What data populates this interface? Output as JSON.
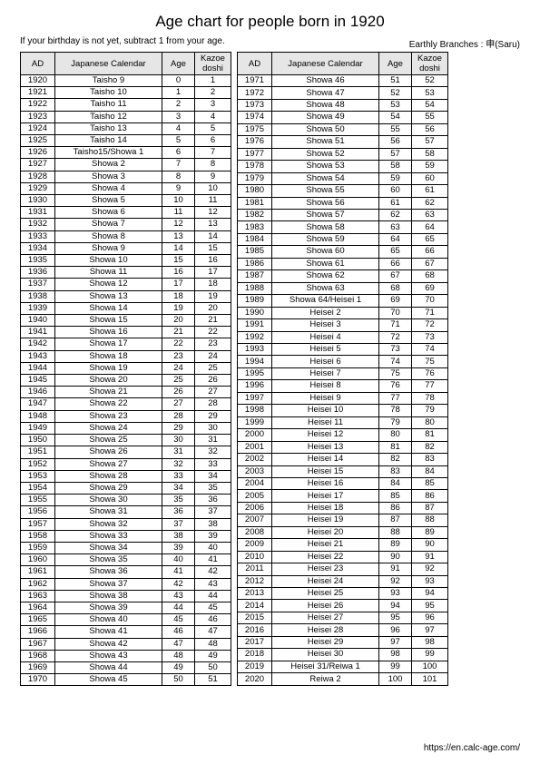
{
  "title": "Age chart for people born in 1920",
  "note_left": "If your birthday is not yet, subtract 1 from your age.",
  "note_right": "Earthly Branches :  申(Saru)",
  "footer": "https://en.calc-age.com/",
  "columns": [
    "AD",
    "Japanese Calendar",
    "Age",
    "Kazoe doshi"
  ],
  "left": [
    [
      "1920",
      "Taisho 9",
      "0",
      "1"
    ],
    [
      "1921",
      "Taisho 10",
      "1",
      "2"
    ],
    [
      "1922",
      "Taisho 11",
      "2",
      "3"
    ],
    [
      "1923",
      "Taisho 12",
      "3",
      "4"
    ],
    [
      "1924",
      "Taisho 13",
      "4",
      "5"
    ],
    [
      "1925",
      "Taisho 14",
      "5",
      "6"
    ],
    [
      "1926",
      "Taisho15/Showa 1",
      "6",
      "7"
    ],
    [
      "1927",
      "Showa 2",
      "7",
      "8"
    ],
    [
      "1928",
      "Showa 3",
      "8",
      "9"
    ],
    [
      "1929",
      "Showa 4",
      "9",
      "10"
    ],
    [
      "1930",
      "Showa 5",
      "10",
      "11"
    ],
    [
      "1931",
      "Showa 6",
      "11",
      "12"
    ],
    [
      "1932",
      "Showa 7",
      "12",
      "13"
    ],
    [
      "1933",
      "Showa 8",
      "13",
      "14"
    ],
    [
      "1934",
      "Showa 9",
      "14",
      "15"
    ],
    [
      "1935",
      "Showa 10",
      "15",
      "16"
    ],
    [
      "1936",
      "Showa 11",
      "16",
      "17"
    ],
    [
      "1937",
      "Showa 12",
      "17",
      "18"
    ],
    [
      "1938",
      "Showa 13",
      "18",
      "19"
    ],
    [
      "1939",
      "Showa 14",
      "19",
      "20"
    ],
    [
      "1940",
      "Showa 15",
      "20",
      "21"
    ],
    [
      "1941",
      "Showa 16",
      "21",
      "22"
    ],
    [
      "1942",
      "Showa 17",
      "22",
      "23"
    ],
    [
      "1943",
      "Showa 18",
      "23",
      "24"
    ],
    [
      "1944",
      "Showa 19",
      "24",
      "25"
    ],
    [
      "1945",
      "Showa 20",
      "25",
      "26"
    ],
    [
      "1946",
      "Showa 21",
      "26",
      "27"
    ],
    [
      "1947",
      "Showa 22",
      "27",
      "28"
    ],
    [
      "1948",
      "Showa 23",
      "28",
      "29"
    ],
    [
      "1949",
      "Showa 24",
      "29",
      "30"
    ],
    [
      "1950",
      "Showa 25",
      "30",
      "31"
    ],
    [
      "1951",
      "Showa 26",
      "31",
      "32"
    ],
    [
      "1952",
      "Showa 27",
      "32",
      "33"
    ],
    [
      "1953",
      "Showa 28",
      "33",
      "34"
    ],
    [
      "1954",
      "Showa 29",
      "34",
      "35"
    ],
    [
      "1955",
      "Showa 30",
      "35",
      "36"
    ],
    [
      "1956",
      "Showa 31",
      "36",
      "37"
    ],
    [
      "1957",
      "Showa 32",
      "37",
      "38"
    ],
    [
      "1958",
      "Showa 33",
      "38",
      "39"
    ],
    [
      "1959",
      "Showa 34",
      "39",
      "40"
    ],
    [
      "1960",
      "Showa 35",
      "40",
      "41"
    ],
    [
      "1961",
      "Showa 36",
      "41",
      "42"
    ],
    [
      "1962",
      "Showa 37",
      "42",
      "43"
    ],
    [
      "1963",
      "Showa 38",
      "43",
      "44"
    ],
    [
      "1964",
      "Showa 39",
      "44",
      "45"
    ],
    [
      "1965",
      "Showa 40",
      "45",
      "46"
    ],
    [
      "1966",
      "Showa 41",
      "46",
      "47"
    ],
    [
      "1967",
      "Showa 42",
      "47",
      "48"
    ],
    [
      "1968",
      "Showa 43",
      "48",
      "49"
    ],
    [
      "1969",
      "Showa 44",
      "49",
      "50"
    ],
    [
      "1970",
      "Showa 45",
      "50",
      "51"
    ]
  ],
  "right": [
    [
      "1971",
      "Showa 46",
      "51",
      "52"
    ],
    [
      "1972",
      "Showa 47",
      "52",
      "53"
    ],
    [
      "1973",
      "Showa 48",
      "53",
      "54"
    ],
    [
      "1974",
      "Showa 49",
      "54",
      "55"
    ],
    [
      "1975",
      "Showa 50",
      "55",
      "56"
    ],
    [
      "1976",
      "Showa 51",
      "56",
      "57"
    ],
    [
      "1977",
      "Showa 52",
      "57",
      "58"
    ],
    [
      "1978",
      "Showa 53",
      "58",
      "59"
    ],
    [
      "1979",
      "Showa 54",
      "59",
      "60"
    ],
    [
      "1980",
      "Showa 55",
      "60",
      "61"
    ],
    [
      "1981",
      "Showa 56",
      "61",
      "62"
    ],
    [
      "1982",
      "Showa 57",
      "62",
      "63"
    ],
    [
      "1983",
      "Showa 58",
      "63",
      "64"
    ],
    [
      "1984",
      "Showa 59",
      "64",
      "65"
    ],
    [
      "1985",
      "Showa 60",
      "65",
      "66"
    ],
    [
      "1986",
      "Showa 61",
      "66",
      "67"
    ],
    [
      "1987",
      "Showa 62",
      "67",
      "68"
    ],
    [
      "1988",
      "Showa 63",
      "68",
      "69"
    ],
    [
      "1989",
      "Showa 64/Heisei 1",
      "69",
      "70"
    ],
    [
      "1990",
      "Heisei 2",
      "70",
      "71"
    ],
    [
      "1991",
      "Heisei 3",
      "71",
      "72"
    ],
    [
      "1992",
      "Heisei 4",
      "72",
      "73"
    ],
    [
      "1993",
      "Heisei 5",
      "73",
      "74"
    ],
    [
      "1994",
      "Heisei 6",
      "74",
      "75"
    ],
    [
      "1995",
      "Heisei 7",
      "75",
      "76"
    ],
    [
      "1996",
      "Heisei 8",
      "76",
      "77"
    ],
    [
      "1997",
      "Heisei 9",
      "77",
      "78"
    ],
    [
      "1998",
      "Heisei 10",
      "78",
      "79"
    ],
    [
      "1999",
      "Heisei 11",
      "79",
      "80"
    ],
    [
      "2000",
      "Heisei 12",
      "80",
      "81"
    ],
    [
      "2001",
      "Heisei 13",
      "81",
      "82"
    ],
    [
      "2002",
      "Heisei 14",
      "82",
      "83"
    ],
    [
      "2003",
      "Heisei 15",
      "83",
      "84"
    ],
    [
      "2004",
      "Heisei 16",
      "84",
      "85"
    ],
    [
      "2005",
      "Heisei 17",
      "85",
      "86"
    ],
    [
      "2006",
      "Heisei 18",
      "86",
      "87"
    ],
    [
      "2007",
      "Heisei 19",
      "87",
      "88"
    ],
    [
      "2008",
      "Heisei 20",
      "88",
      "89"
    ],
    [
      "2009",
      "Heisei 21",
      "89",
      "90"
    ],
    [
      "2010",
      "Heisei 22",
      "90",
      "91"
    ],
    [
      "2011",
      "Heisei 23",
      "91",
      "92"
    ],
    [
      "2012",
      "Heisei 24",
      "92",
      "93"
    ],
    [
      "2013",
      "Heisei 25",
      "93",
      "94"
    ],
    [
      "2014",
      "Heisei 26",
      "94",
      "95"
    ],
    [
      "2015",
      "Heisei 27",
      "95",
      "96"
    ],
    [
      "2016",
      "Heisei 28",
      "96",
      "97"
    ],
    [
      "2017",
      "Heisei 29",
      "97",
      "98"
    ],
    [
      "2018",
      "Heisei 30",
      "98",
      "99"
    ],
    [
      "2019",
      "Heisei 31/Reiwa 1",
      "99",
      "100"
    ],
    [
      "2020",
      "Reiwa 2",
      "100",
      "101"
    ]
  ]
}
